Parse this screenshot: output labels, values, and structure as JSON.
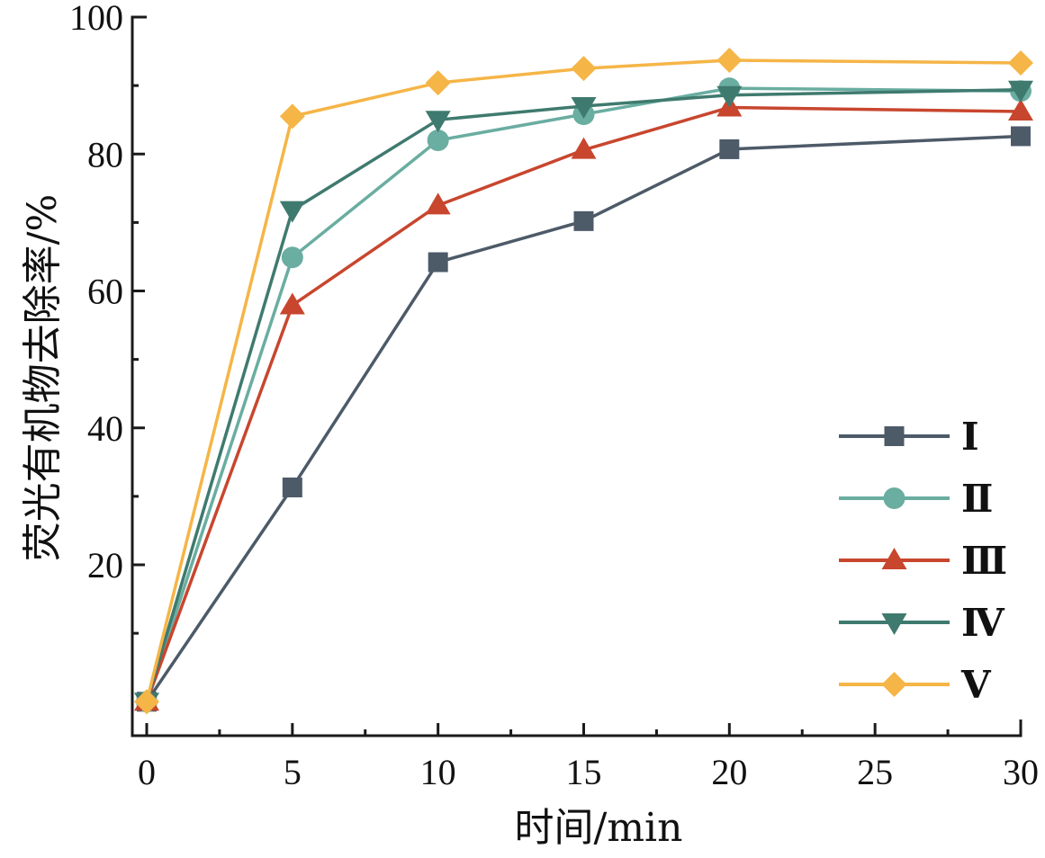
{
  "chart_data": {
    "type": "line",
    "title": "",
    "xlabel": "时间/min",
    "ylabel": "荧光有机物去除率/%",
    "xlim": [
      -1,
      30
    ],
    "ylim": [
      -5,
      100
    ],
    "xticks": [
      0,
      5,
      10,
      15,
      20,
      25,
      30
    ],
    "xtick_labels": [
      "0",
      "5",
      "10",
      "15",
      "20",
      "25",
      "30"
    ],
    "yticks": [
      20,
      40,
      60,
      80,
      100
    ],
    "ytick_labels": [
      "20",
      "40",
      "60",
      "80",
      "100"
    ],
    "x_minor_step": 2.5,
    "y_minor_step": 10,
    "grid": false,
    "legend_position": "bottom-right",
    "x": [
      0,
      5,
      10,
      15,
      20,
      30
    ],
    "series": [
      {
        "name": "Ⅰ",
        "marker": "square",
        "color": "#4d5a68",
        "values": [
          0,
          31.3,
          64.2,
          70.2,
          80.7,
          82.6
        ]
      },
      {
        "name": "Ⅱ",
        "marker": "circle",
        "color": "#6aada1",
        "values": [
          0,
          64.9,
          82.0,
          85.8,
          89.6,
          89.2
        ]
      },
      {
        "name": "Ⅲ",
        "marker": "triangle-up",
        "color": "#c8462e",
        "values": [
          0,
          57.9,
          72.5,
          80.6,
          86.8,
          86.2
        ]
      },
      {
        "name": "Ⅳ",
        "marker": "triangle-down",
        "color": "#3f7a6f",
        "values": [
          0,
          71.8,
          85.0,
          87.0,
          88.6,
          89.4
        ]
      },
      {
        "name": "Ⅴ",
        "marker": "diamond",
        "color": "#f5b547",
        "values": [
          0,
          85.5,
          90.4,
          92.5,
          93.7,
          93.3
        ]
      }
    ]
  }
}
